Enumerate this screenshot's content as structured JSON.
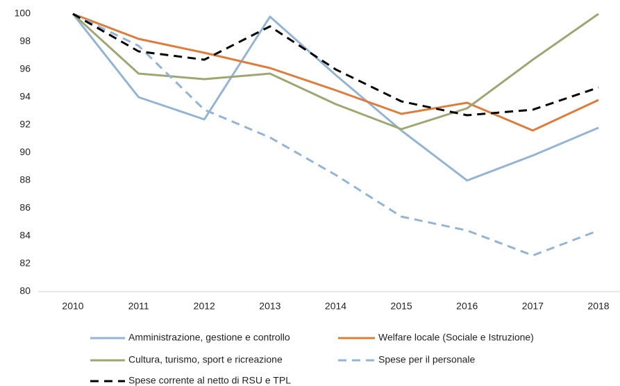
{
  "chart_data": {
    "type": "line",
    "categories": [
      "2010",
      "2011",
      "2012",
      "2013",
      "2014",
      "2015",
      "2016",
      "2017",
      "2018"
    ],
    "series": [
      {
        "name": "Amministrazione, gestione e controllo",
        "color": "#94b4d6",
        "dashed": false,
        "values": [
          100,
          94.0,
          92.4,
          99.8,
          95.6,
          91.6,
          88.0,
          89.8,
          91.8
        ]
      },
      {
        "name": "Welfare locale (Sociale e Istruzione)",
        "color": "#e07b39",
        "dashed": false,
        "values": [
          100,
          98.2,
          97.2,
          96.1,
          94.5,
          92.8,
          93.6,
          91.6,
          93.8
        ]
      },
      {
        "name": "Cultura, turismo, sport e ricreazione",
        "color": "#9ea772",
        "dashed": false,
        "values": [
          100,
          95.7,
          95.3,
          95.7,
          93.5,
          91.7,
          93.2,
          96.7,
          100
        ]
      },
      {
        "name": "Spese per il personale",
        "color": "#94b4d6",
        "dashed": true,
        "values": [
          100,
          97.7,
          93.1,
          91.1,
          88.4,
          85.4,
          84.4,
          82.6,
          84.4
        ]
      },
      {
        "name": "Spese corrente al netto di RSU e TPL",
        "color": "#000000",
        "dashed": true,
        "values": [
          100,
          97.3,
          96.7,
          99.1,
          96.0,
          93.7,
          92.7,
          93.1,
          94.7
        ]
      }
    ],
    "ylim": [
      80,
      100
    ],
    "yticks": [
      80,
      82,
      84,
      86,
      88,
      90,
      92,
      94,
      96,
      98,
      100
    ],
    "grid": false
  }
}
